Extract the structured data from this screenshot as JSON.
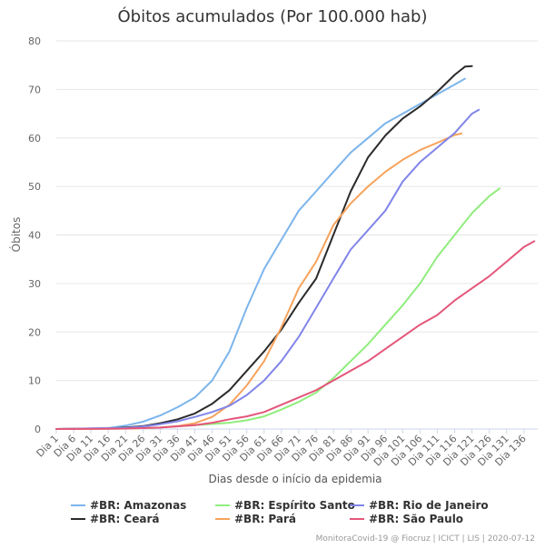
{
  "chart_data": {
    "type": "line",
    "title": "Óbitos acumulados (Por 100.000 hab)",
    "xlabel": "Dias desde o início da epidemia",
    "ylabel": "Óbitos",
    "ylim": [
      0,
      80
    ],
    "yticks": [
      0,
      10,
      20,
      30,
      40,
      50,
      60,
      70,
      80
    ],
    "xlim": [
      1,
      140
    ],
    "xticks": [
      {
        "day": 1,
        "label": "Dia 1"
      },
      {
        "day": 6,
        "label": "Dia 6"
      },
      {
        "day": 11,
        "label": "Dia 11"
      },
      {
        "day": 16,
        "label": "Dia 16"
      },
      {
        "day": 21,
        "label": "Dia 21"
      },
      {
        "day": 26,
        "label": "Dia 26"
      },
      {
        "day": 31,
        "label": "Dia 31"
      },
      {
        "day": 36,
        "label": "Dia 36"
      },
      {
        "day": 41,
        "label": "Dia 41"
      },
      {
        "day": 46,
        "label": "Dia 46"
      },
      {
        "day": 51,
        "label": "Dia 51"
      },
      {
        "day": 56,
        "label": "Dia 56"
      },
      {
        "day": 61,
        "label": "Dia 61"
      },
      {
        "day": 66,
        "label": "Dia 66"
      },
      {
        "day": 71,
        "label": "Dia 71"
      },
      {
        "day": 76,
        "label": "Dia 76"
      },
      {
        "day": 81,
        "label": "Dia 81"
      },
      {
        "day": 86,
        "label": "Dia 86"
      },
      {
        "day": 91,
        "label": "Dia 91"
      },
      {
        "day": 96,
        "label": "Dia 96"
      },
      {
        "day": 101,
        "label": "Dia 101"
      },
      {
        "day": 106,
        "label": "Dia 106"
      },
      {
        "day": 111,
        "label": "Dia 111"
      },
      {
        "day": 116,
        "label": "Dia 116"
      },
      {
        "day": 121,
        "label": "Dia 121"
      },
      {
        "day": 126,
        "label": "Dia 126"
      },
      {
        "day": 131,
        "label": "Dia 131"
      },
      {
        "day": 136,
        "label": "Dia 136"
      }
    ],
    "grid": "horizontal",
    "legend_position": "bottom",
    "credit": "MonitoraCovid-19 @ Fiocruz | ICICT | LIS | 2020-07-12",
    "series": [
      {
        "name": "#BR: Amazonas",
        "color": "#7cb5ec",
        "points": [
          [
            1,
            0
          ],
          [
            16,
            0.2
          ],
          [
            21,
            0.7
          ],
          [
            26,
            1.5
          ],
          [
            31,
            2.8
          ],
          [
            36,
            4.5
          ],
          [
            41,
            6.5
          ],
          [
            46,
            10
          ],
          [
            51,
            16
          ],
          [
            56,
            25
          ],
          [
            61,
            33
          ],
          [
            66,
            39
          ],
          [
            71,
            45
          ],
          [
            76,
            49
          ],
          [
            81,
            53
          ],
          [
            86,
            57
          ],
          [
            91,
            60
          ],
          [
            96,
            63
          ],
          [
            101,
            65
          ],
          [
            106,
            67
          ],
          [
            111,
            69
          ],
          [
            116,
            71
          ],
          [
            119,
            72.2
          ]
        ]
      },
      {
        "name": "#BR: Ceará",
        "color": "#2b2b2b",
        "points": [
          [
            1,
            0
          ],
          [
            16,
            0.1
          ],
          [
            21,
            0.3
          ],
          [
            26,
            0.6
          ],
          [
            31,
            1.2
          ],
          [
            36,
            2
          ],
          [
            41,
            3.2
          ],
          [
            46,
            5.2
          ],
          [
            51,
            8
          ],
          [
            56,
            12
          ],
          [
            61,
            16
          ],
          [
            66,
            20.5
          ],
          [
            71,
            26
          ],
          [
            76,
            31
          ],
          [
            81,
            40
          ],
          [
            86,
            49
          ],
          [
            91,
            56
          ],
          [
            96,
            60.5
          ],
          [
            101,
            64
          ],
          [
            106,
            66.5
          ],
          [
            111,
            69.5
          ],
          [
            116,
            73
          ],
          [
            119,
            74.7
          ],
          [
            121,
            74.8
          ]
        ]
      },
      {
        "name": "#BR: Espírito Santo",
        "color": "#90ed7d",
        "points": [
          [
            1,
            0
          ],
          [
            21,
            0.1
          ],
          [
            31,
            0.3
          ],
          [
            41,
            0.8
          ],
          [
            51,
            1.3
          ],
          [
            56,
            1.8
          ],
          [
            61,
            2.6
          ],
          [
            66,
            4
          ],
          [
            71,
            5.6
          ],
          [
            76,
            7.5
          ],
          [
            81,
            10.5
          ],
          [
            86,
            14
          ],
          [
            91,
            17.5
          ],
          [
            96,
            21.5
          ],
          [
            101,
            25.5
          ],
          [
            106,
            30
          ],
          [
            111,
            35.5
          ],
          [
            116,
            40
          ],
          [
            121,
            44.5
          ],
          [
            126,
            48
          ],
          [
            129,
            49.6
          ]
        ]
      },
      {
        "name": "#BR: Pará",
        "color": "#f7a35c",
        "points": [
          [
            1,
            0
          ],
          [
            21,
            0.1
          ],
          [
            31,
            0.3
          ],
          [
            36,
            0.6
          ],
          [
            41,
            1.2
          ],
          [
            46,
            2.5
          ],
          [
            51,
            5
          ],
          [
            56,
            9
          ],
          [
            61,
            14
          ],
          [
            66,
            21
          ],
          [
            71,
            29
          ],
          [
            76,
            34.5
          ],
          [
            81,
            42
          ],
          [
            86,
            46.5
          ],
          [
            91,
            50
          ],
          [
            96,
            53
          ],
          [
            101,
            55.5
          ],
          [
            106,
            57.5
          ],
          [
            111,
            59
          ],
          [
            116,
            60.6
          ],
          [
            118,
            60.9
          ]
        ]
      },
      {
        "name": "#BR: Rio de Janeiro",
        "color": "#8085e9",
        "points": [
          [
            1,
            0
          ],
          [
            21,
            0.2
          ],
          [
            26,
            0.5
          ],
          [
            31,
            1
          ],
          [
            36,
            1.6
          ],
          [
            41,
            2.5
          ],
          [
            46,
            3.5
          ],
          [
            51,
            4.8
          ],
          [
            56,
            7
          ],
          [
            61,
            10
          ],
          [
            66,
            14
          ],
          [
            71,
            19
          ],
          [
            76,
            25
          ],
          [
            81,
            31
          ],
          [
            86,
            37
          ],
          [
            91,
            41
          ],
          [
            96,
            45
          ],
          [
            101,
            51
          ],
          [
            106,
            55
          ],
          [
            111,
            58
          ],
          [
            116,
            61
          ],
          [
            121,
            65
          ],
          [
            123,
            65.8
          ]
        ]
      },
      {
        "name": "#BR: São Paulo",
        "color": "#e4567b",
        "points": [
          [
            1,
            0
          ],
          [
            21,
            0.1
          ],
          [
            31,
            0.3
          ],
          [
            41,
            0.8
          ],
          [
            46,
            1.3
          ],
          [
            51,
            2
          ],
          [
            56,
            2.6
          ],
          [
            61,
            3.5
          ],
          [
            66,
            5
          ],
          [
            71,
            6.5
          ],
          [
            76,
            8
          ],
          [
            81,
            10
          ],
          [
            86,
            12
          ],
          [
            91,
            14
          ],
          [
            96,
            16.5
          ],
          [
            101,
            19
          ],
          [
            106,
            21.5
          ],
          [
            111,
            23.5
          ],
          [
            116,
            26.5
          ],
          [
            121,
            29
          ],
          [
            126,
            31.5
          ],
          [
            131,
            34.5
          ],
          [
            136,
            37.5
          ],
          [
            139,
            38.7
          ]
        ]
      }
    ]
  }
}
